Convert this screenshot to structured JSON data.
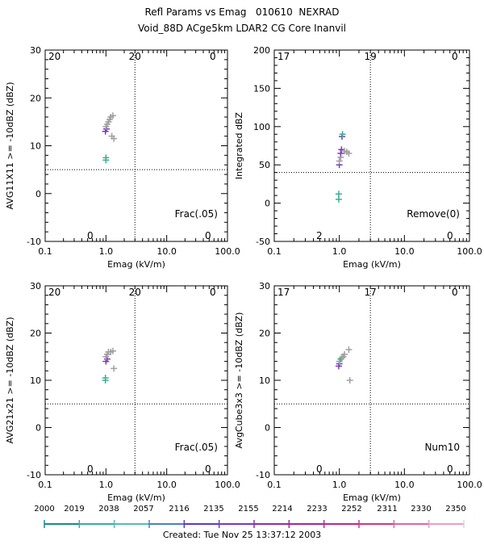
{
  "figure": {
    "title_line1": "Refl Params vs Emag   010610  NEXRAD",
    "title_line2": "Void_88D ACge5km LDAR2 CG Core Inanvil",
    "footer": "Created: Tue Nov 25 13:37:12 2003"
  },
  "colorbar": {
    "labels": [
      "2000",
      "2019",
      "2038",
      "2057",
      "2116",
      "2135",
      "2155",
      "2214",
      "2233",
      "2252",
      "2311",
      "2330",
      "2350"
    ],
    "colors": [
      "#1a8a8a",
      "#3aaaa8",
      "#55bdb4",
      "#4d7fc4",
      "#5a3cc0",
      "#7d3ab8",
      "#8e2fa8",
      "#a0289a",
      "#b52b8e",
      "#c73a8a",
      "#d86aa8",
      "#e6a0c8",
      "#f0c8e0"
    ]
  },
  "chart_data": [
    {
      "type": "scatter",
      "xlabel": "Emag (kV/m)",
      "ylabel": "AVG11X11 >= -10dBZ (dBZ)",
      "xscale": "log",
      "xlim": [
        0.1,
        100.0
      ],
      "ylim": [
        -10,
        30
      ],
      "xticks": [
        "0.1",
        "1.0",
        "10.0",
        "100.0"
      ],
      "yticks": [
        "-10",
        "0",
        "10",
        "20",
        "30"
      ],
      "threshold_x": 3.0,
      "threshold_y": 5,
      "quadrant_counts": {
        "top_left": "20",
        "top_right": "0",
        "bottom_left": "0",
        "bottom_right": "0",
        "top_center": "20"
      },
      "annotation": "Frac(.05)",
      "points": [
        {
          "x": 1.0,
          "y": 7.5,
          "c": "#3aaf8f"
        },
        {
          "x": 1.0,
          "y": 7.0,
          "c": "#3aaf8f"
        },
        {
          "x": 0.98,
          "y": 13.0,
          "c": "#7d3ab8"
        },
        {
          "x": 1.02,
          "y": 13.5,
          "c": "#7d3ab8"
        },
        {
          "x": 1.0,
          "y": 14.0,
          "c": "#a0a0a0"
        },
        {
          "x": 1.05,
          "y": 14.5,
          "c": "#a0a0a0"
        },
        {
          "x": 1.1,
          "y": 15.0,
          "c": "#a0a0a0"
        },
        {
          "x": 1.15,
          "y": 15.5,
          "c": "#a0a0a0"
        },
        {
          "x": 1.2,
          "y": 16.0,
          "c": "#a0a0a0"
        },
        {
          "x": 1.3,
          "y": 16.3,
          "c": "#a0a0a0"
        },
        {
          "x": 1.25,
          "y": 12.0,
          "c": "#a0a0a0"
        },
        {
          "x": 1.35,
          "y": 11.5,
          "c": "#a0a0a0"
        }
      ]
    },
    {
      "type": "scatter",
      "xlabel": "Emag (kV/m)",
      "ylabel": "Integrated dBZ",
      "xscale": "log",
      "xlim": [
        0.1,
        100.0
      ],
      "ylim": [
        -50,
        200
      ],
      "xticks": [
        "0.1",
        "1.0",
        "10.0",
        "100.0"
      ],
      "yticks": [
        "-50",
        "0",
        "50",
        "100",
        "150",
        "200"
      ],
      "threshold_x": 3.0,
      "threshold_y": 40,
      "quadrant_counts": {
        "top_left": "17",
        "top_right": "0",
        "bottom_left": "2",
        "bottom_right": "0",
        "top_center": "19"
      },
      "annotation": "Remove(0)",
      "points": [
        {
          "x": 0.98,
          "y": 12.0,
          "c": "#3aaf8f"
        },
        {
          "x": 0.98,
          "y": 5.0,
          "c": "#3aaf8f"
        },
        {
          "x": 1.0,
          "y": 50.0,
          "c": "#7d3ab8"
        },
        {
          "x": 1.0,
          "y": 55.0,
          "c": "#a0a0a0"
        },
        {
          "x": 1.05,
          "y": 60.0,
          "c": "#a0a0a0"
        },
        {
          "x": 1.05,
          "y": 65.0,
          "c": "#7d3ab8"
        },
        {
          "x": 1.08,
          "y": 70.0,
          "c": "#7d3ab8"
        },
        {
          "x": 1.1,
          "y": 87.0,
          "c": "#7d3ab8"
        },
        {
          "x": 1.12,
          "y": 90.0,
          "c": "#3aaf8f"
        },
        {
          "x": 1.2,
          "y": 68.0,
          "c": "#a0a0a0"
        },
        {
          "x": 1.3,
          "y": 67.0,
          "c": "#a0a0a0"
        },
        {
          "x": 1.4,
          "y": 65.0,
          "c": "#a0a0a0"
        }
      ]
    },
    {
      "type": "scatter",
      "xlabel": "Emag (kV/m)",
      "ylabel": "AVG21x21 >= -10dBZ (dBZ)",
      "xscale": "log",
      "xlim": [
        0.1,
        100.0
      ],
      "ylim": [
        -10,
        30
      ],
      "xticks": [
        "0.1",
        "1.0",
        "10.0",
        "100.0"
      ],
      "yticks": [
        "-10",
        "0",
        "10",
        "20",
        "30"
      ],
      "threshold_x": 3.0,
      "threshold_y": 5,
      "quadrant_counts": {
        "top_left": "20",
        "top_right": "0",
        "bottom_left": "0",
        "bottom_right": "0",
        "top_center": "20"
      },
      "annotation": "Frac(.05)",
      "points": [
        {
          "x": 0.98,
          "y": 10.5,
          "c": "#3aaf8f"
        },
        {
          "x": 0.98,
          "y": 10.0,
          "c": "#3aaf8f"
        },
        {
          "x": 1.0,
          "y": 14.0,
          "c": "#7d3ab8"
        },
        {
          "x": 1.05,
          "y": 14.5,
          "c": "#7d3ab8"
        },
        {
          "x": 1.0,
          "y": 15.0,
          "c": "#a0a0a0"
        },
        {
          "x": 1.05,
          "y": 15.5,
          "c": "#a0a0a0"
        },
        {
          "x": 1.1,
          "y": 16.0,
          "c": "#a0a0a0"
        },
        {
          "x": 1.2,
          "y": 16.0,
          "c": "#a0a0a0"
        },
        {
          "x": 1.3,
          "y": 16.2,
          "c": "#a0a0a0"
        },
        {
          "x": 1.35,
          "y": 12.5,
          "c": "#a0a0a0"
        }
      ]
    },
    {
      "type": "scatter",
      "xlabel": "Emag (kV/m)",
      "ylabel": "AvgCube3x3 >= -10dBZ (dBZ)",
      "xscale": "log",
      "xlim": [
        0.1,
        100.0
      ],
      "ylim": [
        -10,
        30
      ],
      "xticks": [
        "0.1",
        "1.0",
        "10.0",
        "100.0"
      ],
      "yticks": [
        "-10",
        "0",
        "10",
        "20",
        "30"
      ],
      "threshold_x": 3.0,
      "threshold_y": 5,
      "quadrant_counts": {
        "top_left": "17",
        "top_right": "0",
        "bottom_left": "0",
        "bottom_right": "0",
        "top_center": "17"
      },
      "annotation": "Num10",
      "points": [
        {
          "x": 0.98,
          "y": 13.0,
          "c": "#7d3ab8"
        },
        {
          "x": 1.0,
          "y": 13.5,
          "c": "#7d3ab8"
        },
        {
          "x": 1.0,
          "y": 14.0,
          "c": "#a0a0a0"
        },
        {
          "x": 1.05,
          "y": 14.5,
          "c": "#3aaf8f"
        },
        {
          "x": 1.1,
          "y": 14.8,
          "c": "#a0a0a0"
        },
        {
          "x": 1.15,
          "y": 15.0,
          "c": "#a0a0a0"
        },
        {
          "x": 1.2,
          "y": 15.5,
          "c": "#a0a0a0"
        },
        {
          "x": 1.4,
          "y": 16.5,
          "c": "#a0a0a0"
        },
        {
          "x": 1.45,
          "y": 10.0,
          "c": "#a0a0a0"
        }
      ]
    }
  ]
}
